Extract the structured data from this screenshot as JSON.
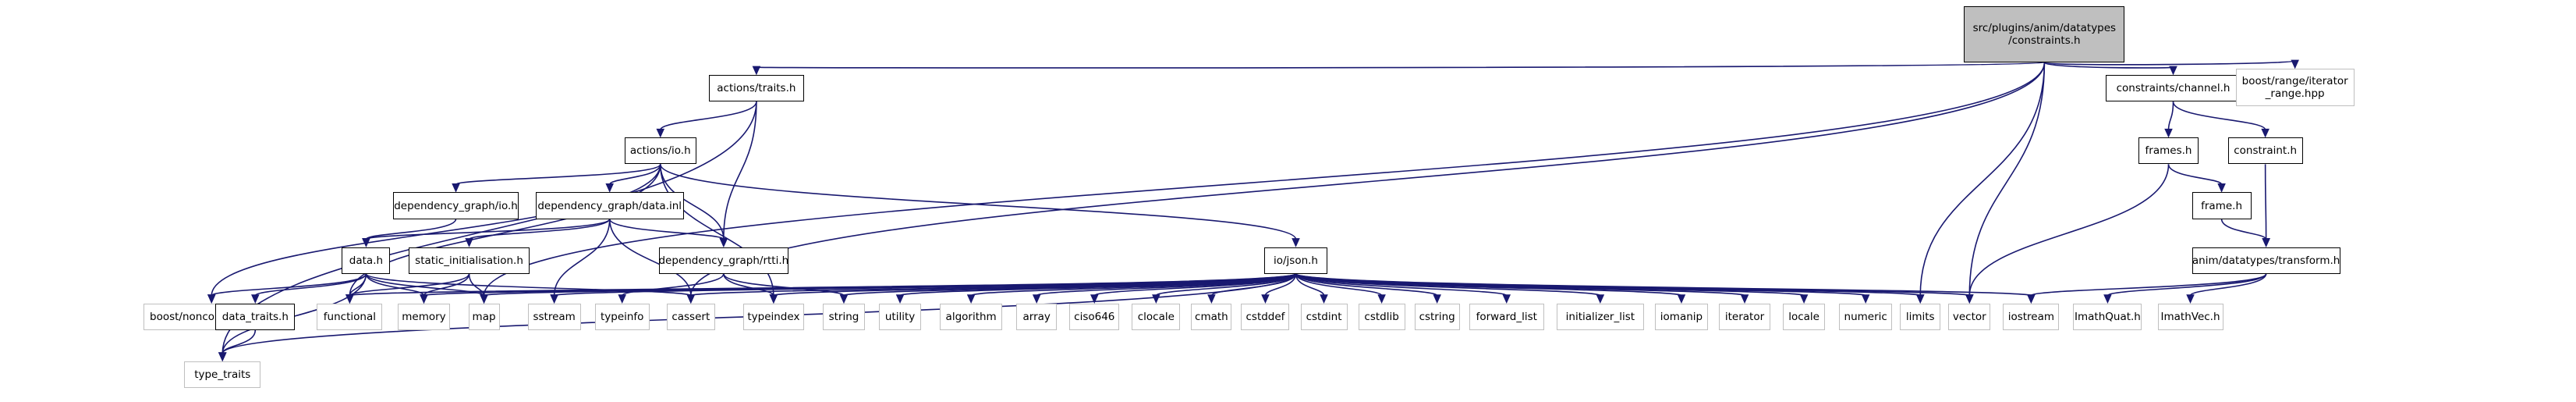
{
  "colors": {
    "edge": "#191970",
    "root_fill": "#bfbfbf",
    "external_border": "#bfbfbf",
    "node_border": "#000000"
  },
  "nodes": {
    "root": "src/plugins/anim/datatypes\n/constraints.h",
    "actions_traits": "actions/traits.h",
    "constraints_channel": "constraints/channel.h",
    "boost_range": "boost/range/iterator\n_range.hpp",
    "actions_io": "actions/io.h",
    "frames": "frames.h",
    "constraint": "constraint.h",
    "dg_io": "dependency_graph/io.h",
    "dg_data_inl": "dependency_graph/data.inl",
    "frame": "frame.h",
    "data_h": "data.h",
    "static_init": "static_initialisation.h",
    "dg_rtti": "dependency_graph/rtti.h",
    "io_json": "io/json.h",
    "transform": "anim/datatypes/transform.h",
    "boost_noncopyable": "boost/noncopyable.hpp",
    "data_traits": "data_traits.h",
    "functional": "functional",
    "memory": "memory",
    "map": "map",
    "sstream": "sstream",
    "typeinfo": "typeinfo",
    "cassert": "cassert",
    "typeindex": "typeindex",
    "string": "string",
    "utility": "utility",
    "algorithm": "algorithm",
    "array": "array",
    "ciso646": "ciso646",
    "clocale": "clocale",
    "cmath": "cmath",
    "cstddef": "cstddef",
    "cstdint": "cstdint",
    "cstdlib": "cstdlib",
    "cstring": "cstring",
    "forward_list": "forward_list",
    "initializer_list": "initializer_list",
    "iomanip": "iomanip",
    "iterator": "iterator",
    "locale": "locale",
    "numeric": "numeric",
    "limits": "limits",
    "vector": "vector",
    "iostream": "iostream",
    "imathquat": "ImathQuat.h",
    "imathvec": "ImathVec.h",
    "type_traits": "type_traits"
  }
}
